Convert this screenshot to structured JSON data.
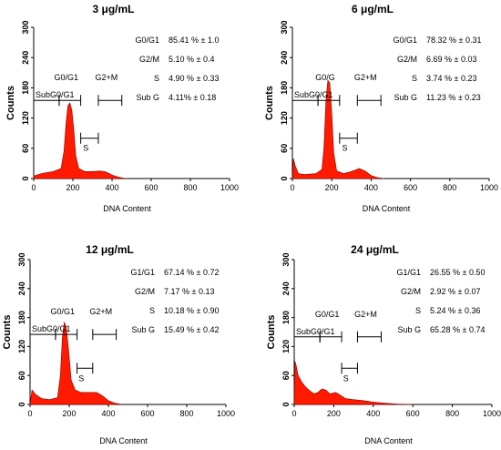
{
  "chart_data": [
    {
      "type": "area",
      "title": "3 μg/mL",
      "xlabel": "DNA Content",
      "ylabel": "Counts",
      "xlim": [
        0,
        1000
      ],
      "ylim": [
        0,
        300
      ],
      "xticks": [
        0,
        200,
        400,
        600,
        800,
        1000
      ],
      "yticks": [
        0,
        60,
        120,
        180,
        240,
        300
      ],
      "stats": [
        {
          "label": "G0/G1",
          "value": "85.41 % ± 1.0"
        },
        {
          "label": "G2/M",
          "value": "5.10 % ± 0.4"
        },
        {
          "label": "S",
          "value": "4.90 % ± 0.33"
        },
        {
          "label": "Sub G",
          "value": "4.11% ± 0.18"
        }
      ],
      "gates": [
        {
          "label": "SubG0/G1",
          "x1": 0,
          "x2": 130,
          "y": 155
        },
        {
          "label": "G0/G1",
          "x1": 130,
          "x2": 240,
          "y": 155
        },
        {
          "label": "G2+M",
          "x1": 330,
          "x2": 450,
          "y": 155
        },
        {
          "label": "S",
          "x1": 240,
          "x2": 330,
          "y": 80
        }
      ],
      "series": [
        {
          "values": [
            [
              0,
              5
            ],
            [
              40,
              10
            ],
            [
              100,
              14
            ],
            [
              140,
              20
            ],
            [
              155,
              55
            ],
            [
              165,
              110
            ],
            [
              175,
              145
            ],
            [
              185,
              150
            ],
            [
              195,
              135
            ],
            [
              205,
              95
            ],
            [
              215,
              45
            ],
            [
              230,
              20
            ],
            [
              260,
              14
            ],
            [
              300,
              14
            ],
            [
              340,
              15
            ],
            [
              370,
              13
            ],
            [
              400,
              7
            ],
            [
              430,
              3
            ],
            [
              470,
              0
            ]
          ]
        }
      ],
      "color": "#ff1a00"
    },
    {
      "type": "area",
      "title": "6 μg/mL",
      "xlabel": "DNA Content",
      "ylabel": "Counts",
      "xlim": [
        0,
        1000
      ],
      "ylim": [
        0,
        300
      ],
      "xticks": [
        0,
        200,
        400,
        600,
        800,
        1000
      ],
      "yticks": [
        0,
        60,
        120,
        180,
        240,
        300
      ],
      "stats": [
        {
          "label": "G0/G1",
          "value": "78.32 % ± 0.31"
        },
        {
          "label": "G2/M",
          "value": "6.69 % ± 0.03"
        },
        {
          "label": "S",
          "value": "3.74 % ± 0.23"
        },
        {
          "label": "Sub G",
          "value": "11.23 % ± 0.23"
        }
      ],
      "gates": [
        {
          "label": "SubG0/G1",
          "x1": 0,
          "x2": 130,
          "y": 155
        },
        {
          "label": "G0/G",
          "x1": 130,
          "x2": 240,
          "y": 155
        },
        {
          "label": "G2+M",
          "x1": 330,
          "x2": 450,
          "y": 155
        },
        {
          "label": "S",
          "x1": 240,
          "x2": 330,
          "y": 80
        }
      ],
      "series": [
        {
          "values": [
            [
              0,
              0
            ],
            [
              5,
              40
            ],
            [
              15,
              25
            ],
            [
              30,
              10
            ],
            [
              60,
              8
            ],
            [
              120,
              10
            ],
            [
              150,
              18
            ],
            [
              160,
              60
            ],
            [
              170,
              150
            ],
            [
              180,
              195
            ],
            [
              190,
              190
            ],
            [
              200,
              130
            ],
            [
              210,
              50
            ],
            [
              225,
              15
            ],
            [
              260,
              10
            ],
            [
              300,
              14
            ],
            [
              340,
              20
            ],
            [
              370,
              15
            ],
            [
              400,
              6
            ],
            [
              430,
              2
            ],
            [
              470,
              0
            ]
          ]
        }
      ],
      "color": "#ff1a00"
    },
    {
      "type": "area",
      "title": "12 μg/mL",
      "xlabel": "DNA Content",
      "ylabel": "Counts",
      "xlim": [
        0,
        1000
      ],
      "ylim": [
        0,
        300
      ],
      "xticks": [
        0,
        200,
        400,
        600,
        800,
        1000
      ],
      "yticks": [
        0,
        60,
        120,
        180,
        240,
        300
      ],
      "stats": [
        {
          "label": "G1/G1",
          "value": "67.14 % ± 0.72"
        },
        {
          "label": "G2/M",
          "value": "7.17 % ± 0.13"
        },
        {
          "label": "S",
          "value": "10.18 % ± 0.90"
        },
        {
          "label": "Sub G",
          "value": "15.49 % ± 0.42"
        }
      ],
      "gates": [
        {
          "label": "SubG0/G1",
          "x1": 0,
          "x2": 130,
          "y": 145
        },
        {
          "label": "G0/G1",
          "x1": 130,
          "x2": 240,
          "y": 145
        },
        {
          "label": "G2+M",
          "x1": 320,
          "x2": 440,
          "y": 145
        },
        {
          "label": "S",
          "x1": 240,
          "x2": 320,
          "y": 75
        }
      ],
      "series": [
        {
          "values": [
            [
              0,
              0
            ],
            [
              10,
              30
            ],
            [
              30,
              20
            ],
            [
              60,
              12
            ],
            [
              100,
              10
            ],
            [
              140,
              14
            ],
            [
              155,
              60
            ],
            [
              165,
              140
            ],
            [
              175,
              170
            ],
            [
              185,
              160
            ],
            [
              195,
              120
            ],
            [
              210,
              50
            ],
            [
              230,
              30
            ],
            [
              260,
              25
            ],
            [
              300,
              25
            ],
            [
              340,
              25
            ],
            [
              370,
              18
            ],
            [
              400,
              8
            ],
            [
              430,
              3
            ],
            [
              470,
              0
            ]
          ]
        }
      ],
      "color": "#ff1a00"
    },
    {
      "type": "area",
      "title": "24 μg/mL",
      "xlabel": "DNA Content",
      "ylabel": "Counts",
      "xlim": [
        0,
        1000
      ],
      "ylim": [
        0,
        300
      ],
      "xticks": [
        0,
        200,
        400,
        600,
        800,
        1000
      ],
      "yticks": [
        0,
        60,
        120,
        180,
        240,
        300
      ],
      "stats": [
        {
          "label": "G1/G1",
          "value": "26.55 % ± 0.50"
        },
        {
          "label": "G2/M",
          "value": "2.92 % ± 0.07"
        },
        {
          "label": "S",
          "value": "5.24 % ± 0.36"
        },
        {
          "label": "Sub G",
          "value": "65.28 % ± 0.74"
        }
      ],
      "gates": [
        {
          "label": "SubG0/G1",
          "x1": 0,
          "x2": 130,
          "y": 140
        },
        {
          "label": "G0/G1",
          "x1": 130,
          "x2": 240,
          "y": 140
        },
        {
          "label": "G2+M",
          "x1": 320,
          "x2": 440,
          "y": 140
        },
        {
          "label": "S",
          "x1": 240,
          "x2": 320,
          "y": 75
        }
      ],
      "series": [
        {
          "values": [
            [
              0,
              0
            ],
            [
              3,
              90
            ],
            [
              10,
              80
            ],
            [
              20,
              60
            ],
            [
              40,
              45
            ],
            [
              60,
              35
            ],
            [
              80,
              28
            ],
            [
              100,
              22
            ],
            [
              120,
              25
            ],
            [
              140,
              32
            ],
            [
              160,
              30
            ],
            [
              180,
              22
            ],
            [
              210,
              25
            ],
            [
              230,
              20
            ],
            [
              260,
              12
            ],
            [
              300,
              10
            ],
            [
              350,
              8
            ],
            [
              400,
              5
            ],
            [
              450,
              3
            ],
            [
              520,
              1
            ],
            [
              600,
              0
            ]
          ]
        }
      ],
      "color": "#ff1a00"
    }
  ]
}
